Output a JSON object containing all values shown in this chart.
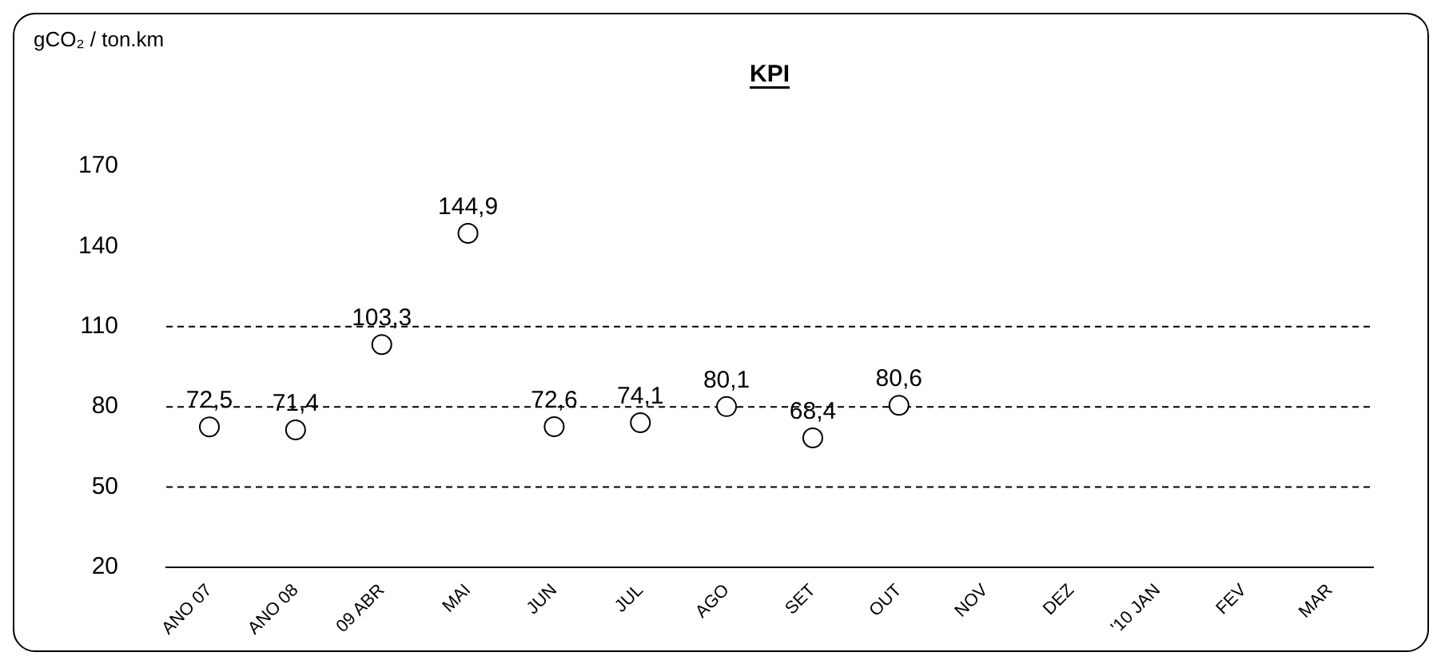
{
  "chart_data": {
    "type": "scatter",
    "title": "KPI",
    "ylabel": "gCO₂ / ton.km",
    "categories": [
      "ANO 07",
      "ANO 08",
      "09 ABR",
      "MAI",
      "JUN",
      "JUL",
      "AGO",
      "SET",
      "OUT",
      "NOV",
      "DEZ",
      "'10 JAN",
      "FEV",
      "MAR"
    ],
    "series": [
      {
        "color": "#000000",
        "values": [
          72.5,
          71.4,
          103.3,
          144.9,
          72.6,
          74.1,
          80.1,
          68.4,
          80.6,
          null,
          null,
          null,
          null,
          null
        ],
        "value_labels": [
          "72,5",
          "71,4",
          "103,3",
          "144,9",
          "72,6",
          "74,1",
          "80,1",
          "68,4",
          "80,6",
          null,
          null,
          null,
          null,
          null
        ]
      }
    ],
    "ylim": [
      20,
      170
    ],
    "yticks": [
      20,
      50,
      80,
      110,
      140,
      170
    ],
    "ref_lines": [
      {
        "axis": "y",
        "value": 50,
        "line_style": "dashed"
      },
      {
        "axis": "y",
        "value": 80,
        "line_style": "dashed"
      },
      {
        "axis": "y",
        "value": 110,
        "line_style": "dashed"
      }
    ],
    "marker": "circle",
    "legend": false
  }
}
